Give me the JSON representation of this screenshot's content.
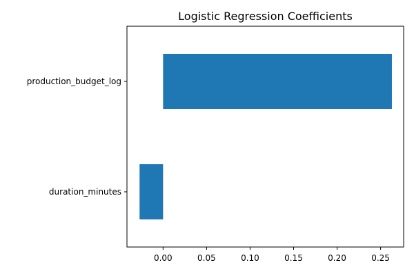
{
  "chart_data": {
    "type": "bar",
    "orientation": "horizontal",
    "title": "Logistic Regression Coefficients",
    "xlabel": "",
    "ylabel": "",
    "categories": [
      "production_budget_log",
      "duration_minutes"
    ],
    "values": [
      0.263,
      -0.027
    ],
    "xlim": [
      -0.0415,
      0.2765
    ],
    "xticks": [
      0.0,
      0.05,
      0.1,
      0.15,
      0.2,
      0.25
    ],
    "xtick_labels": [
      "0.00",
      "0.05",
      "0.10",
      "0.15",
      "0.20",
      "0.25"
    ],
    "grid": false,
    "legend": "none",
    "bar_color": "#1f77b4"
  }
}
